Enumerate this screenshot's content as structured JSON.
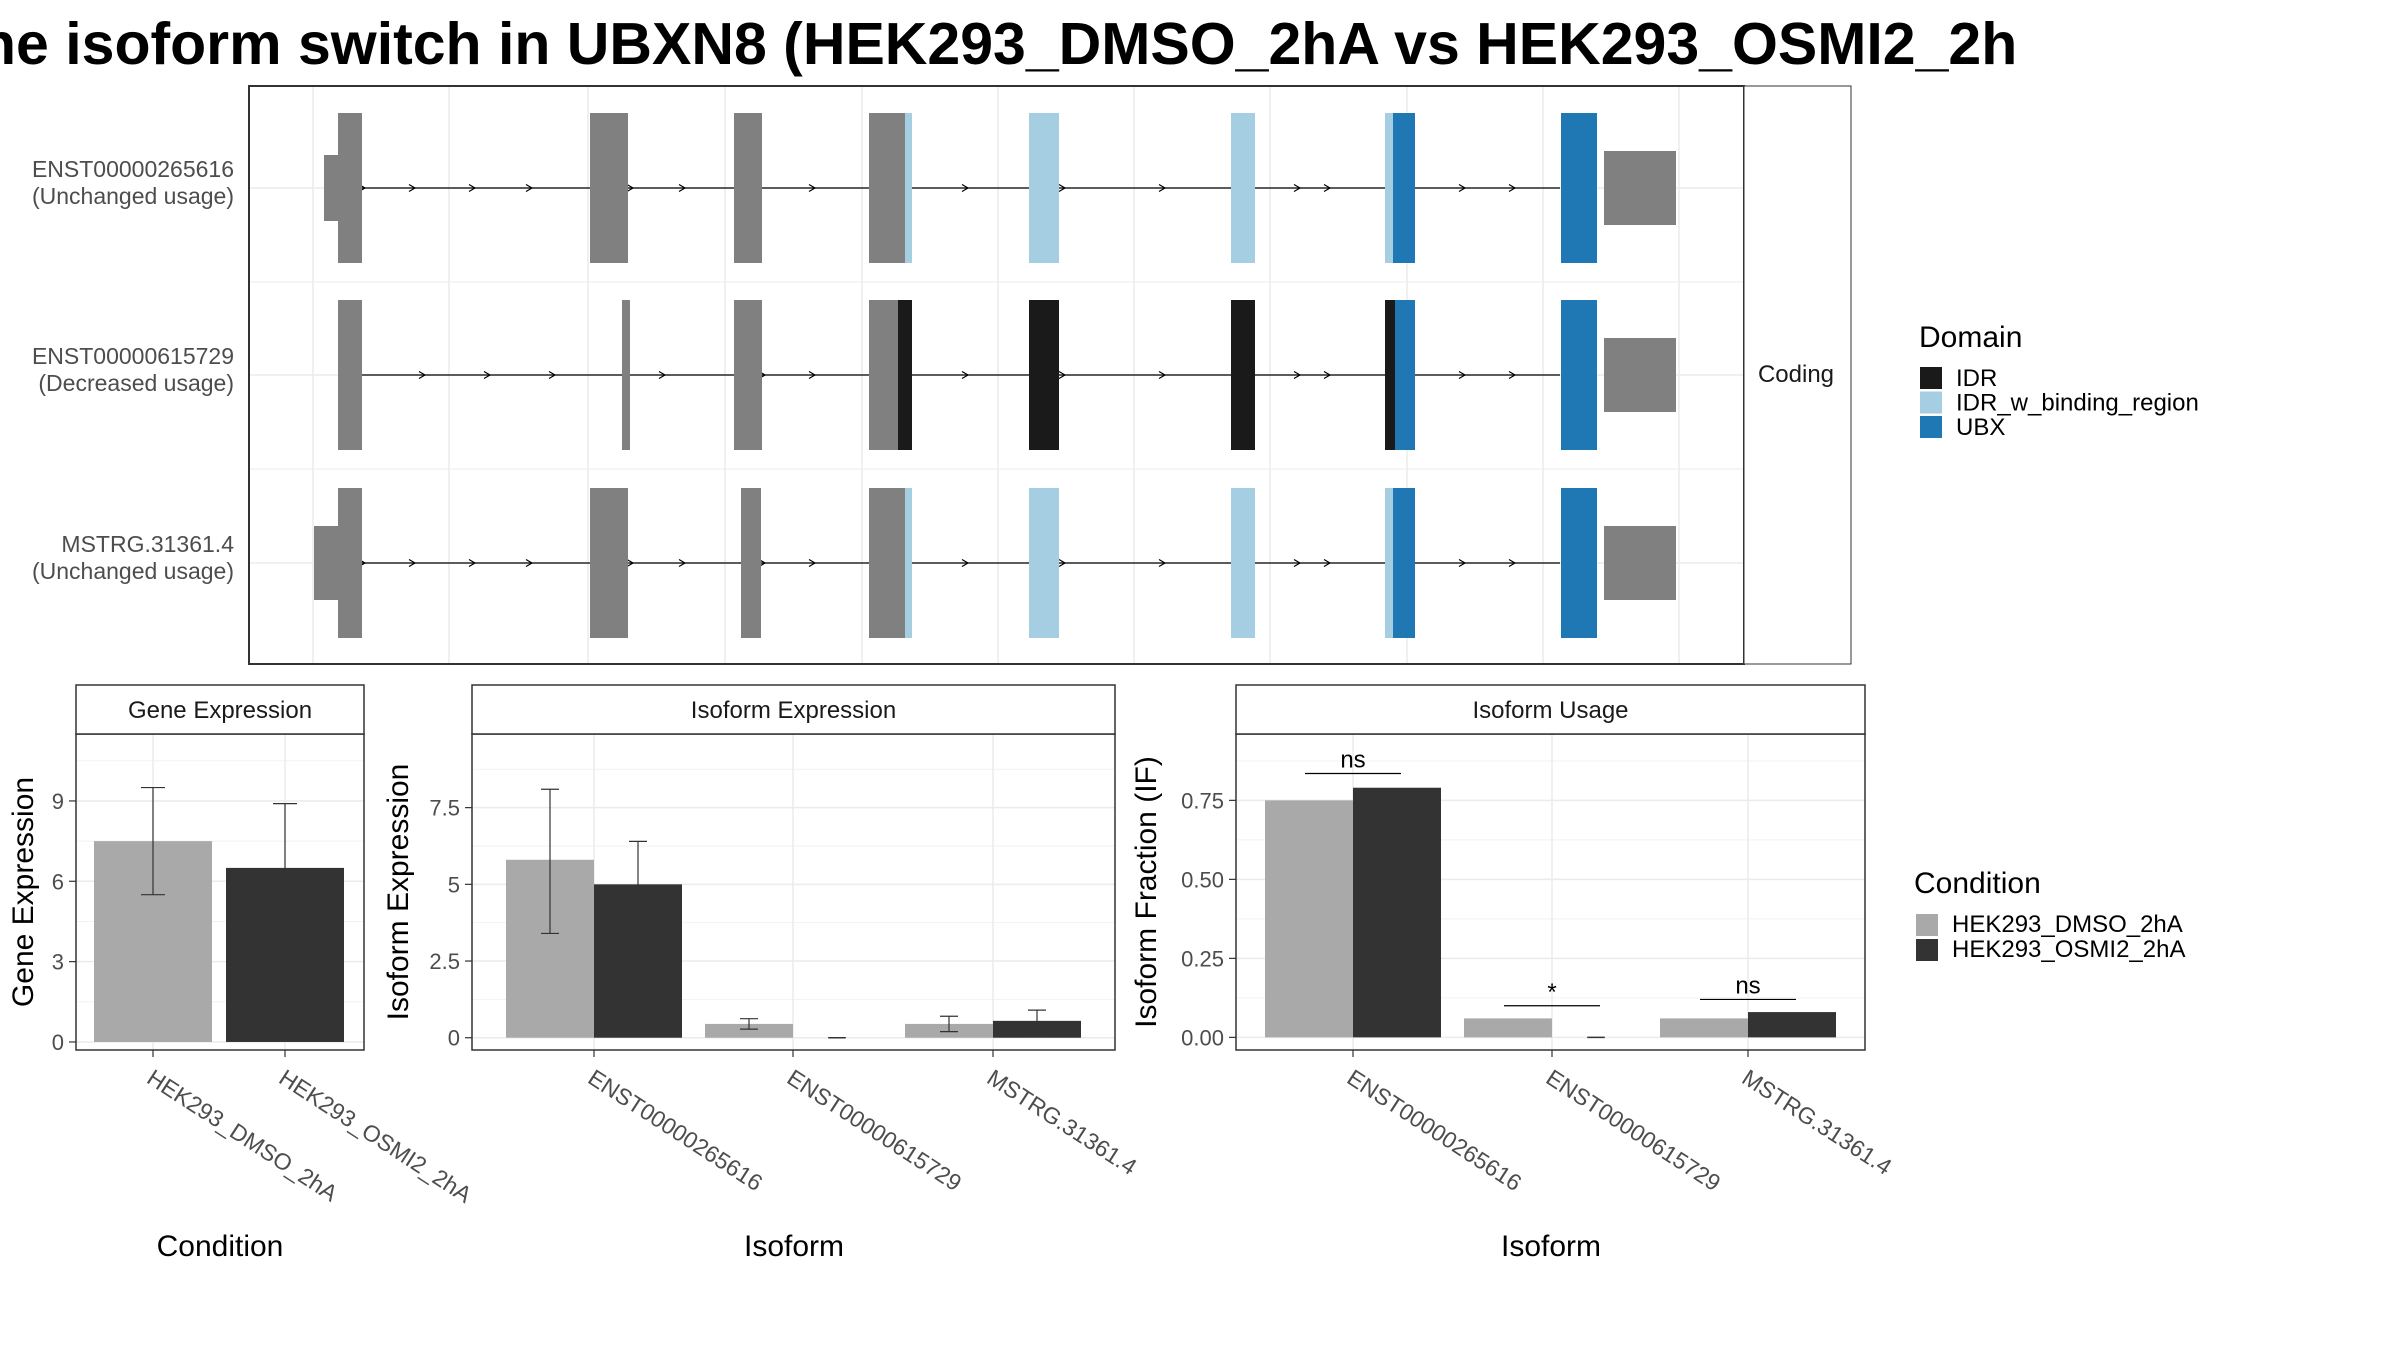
{
  "figure": {
    "title": "ne isoform switch in UBXN8 (HEK293_DMSO_2hA vs HEK293_OSMI2_2h"
  },
  "chart_data": [
    {
      "type": "gene-structure",
      "strip_label": "Coding",
      "colors": {
        "exon": "#808080",
        "IDR": "#1a1a1a",
        "IDR_w_binding_region": "#a6cee3",
        "UBX": "#1f78b4"
      },
      "legend": {
        "title": "Domain",
        "placement": "right",
        "entries": [
          {
            "name": "IDR",
            "color": "#1a1a1a"
          },
          {
            "name": "IDR_w_binding_region",
            "color": "#a6cee3"
          },
          {
            "name": "UBX",
            "color": "#1f78b4"
          }
        ]
      },
      "isoforms": [
        {
          "id": "ENST00000265616",
          "usage": "(Unchanged usage)"
        },
        {
          "id": "ENST00000615729",
          "usage": "(Decreased usage)"
        },
        {
          "id": "MSTRG.31361.4",
          "usage": "(Unchanged usage)"
        }
      ]
    },
    {
      "type": "bar",
      "strip_title": "Gene Expression",
      "xlabel": "Condition",
      "ylabel": "Gene Expression",
      "ylim": [
        -0.3,
        11.5
      ],
      "yticks": [
        0,
        3,
        6,
        9
      ],
      "categories": [
        "HEK293_DMSO_2hA",
        "HEK293_OSMI2_2hA"
      ],
      "values": [
        7.5,
        6.5
      ],
      "error_low": [
        5.5,
        4.1
      ],
      "error_high": [
        9.5,
        8.9
      ],
      "colors": [
        "#a9a9a9",
        "#333333"
      ]
    },
    {
      "type": "bar",
      "strip_title": "Isoform Expression",
      "xlabel": "Isoform",
      "ylabel": "Isoform Expression",
      "ylim": [
        -0.4,
        9.9
      ],
      "yticks": [
        0.0,
        2.5,
        5.0,
        7.5
      ],
      "categories": [
        "ENST00000265616",
        "ENST00000615729",
        "MSTRG.31361.4"
      ],
      "series": [
        {
          "name": "HEK293_DMSO_2hA",
          "color": "#a9a9a9",
          "values": [
            5.8,
            0.45,
            0.45
          ],
          "error_low": [
            3.4,
            0.28,
            0.2
          ],
          "error_high": [
            8.1,
            0.62,
            0.7
          ]
        },
        {
          "name": "HEK293_OSMI2_2hA",
          "color": "#333333",
          "values": [
            5.0,
            0.0,
            0.55
          ],
          "error_low": [
            3.7,
            0.0,
            0.2
          ],
          "error_high": [
            6.4,
            0.0,
            0.9
          ]
        }
      ]
    },
    {
      "type": "bar",
      "strip_title": "Isoform Usage",
      "xlabel": "Isoform",
      "ylabel": "Isoform Fraction (IF)",
      "ylim": [
        -0.04,
        0.96
      ],
      "yticks": [
        "0.00",
        "0.25",
        "0.50",
        "0.75"
      ],
      "categories": [
        "ENST00000265616",
        "ENST00000615729",
        "MSTRG.31361.4"
      ],
      "series": [
        {
          "name": "HEK293_DMSO_2hA",
          "color": "#a9a9a9",
          "values": [
            0.75,
            0.06,
            0.06
          ]
        },
        {
          "name": "HEK293_OSMI2_2hA",
          "color": "#333333",
          "values": [
            0.79,
            0.0,
            0.08
          ]
        }
      ],
      "significance": [
        "ns",
        "*",
        "ns"
      ],
      "significance_y": [
        0.835,
        0.1,
        0.12
      ]
    },
    {
      "type": "legend",
      "title": "Condition",
      "placement": "right",
      "entries": [
        {
          "name": "HEK293_DMSO_2hA",
          "color": "#a9a9a9"
        },
        {
          "name": "HEK293_OSMI2_2hA",
          "color": "#333333"
        }
      ]
    }
  ]
}
